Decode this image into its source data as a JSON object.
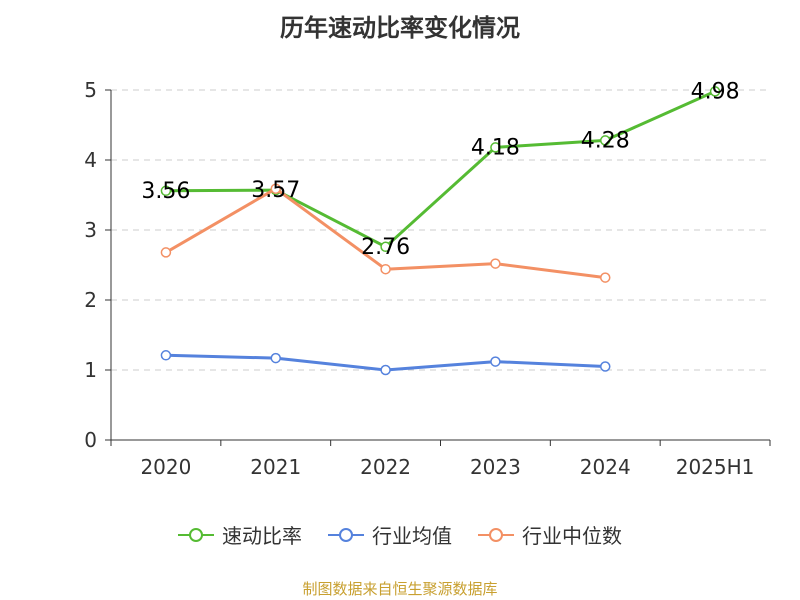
{
  "title": "历年速动比率变化情况",
  "source": "制图数据来自恒生聚源数据库",
  "colors": {
    "series_quick_ratio": "#55bb33",
    "series_industry_mean": "#5582dd",
    "series_industry_median": "#f39064",
    "grid": "#cccccc",
    "axis": "#333333",
    "source_text": "#c8a030"
  },
  "chart_data": {
    "type": "line",
    "title": "历年速动比率变化情况",
    "categories": [
      "2020",
      "2021",
      "2022",
      "2023",
      "2024",
      "2025H1"
    ],
    "ylim": [
      0,
      5
    ],
    "yticks": [
      0,
      1,
      2,
      3,
      4,
      5
    ],
    "grid": true,
    "legend_position": "bottom",
    "series": [
      {
        "name": "速动比率",
        "values": [
          3.56,
          3.57,
          2.76,
          4.18,
          4.28,
          4.98
        ],
        "labels": [
          "3.56",
          "3.57",
          "2.76",
          "4.18",
          "4.28",
          "4.98"
        ],
        "color": "#55bb33"
      },
      {
        "name": "行业均值",
        "values": [
          1.21,
          1.17,
          1.0,
          1.12,
          1.05,
          null
        ],
        "color": "#5582dd"
      },
      {
        "name": "行业中位数",
        "values": [
          2.68,
          3.59,
          2.44,
          2.52,
          2.32,
          null
        ],
        "color": "#f39064"
      }
    ]
  }
}
